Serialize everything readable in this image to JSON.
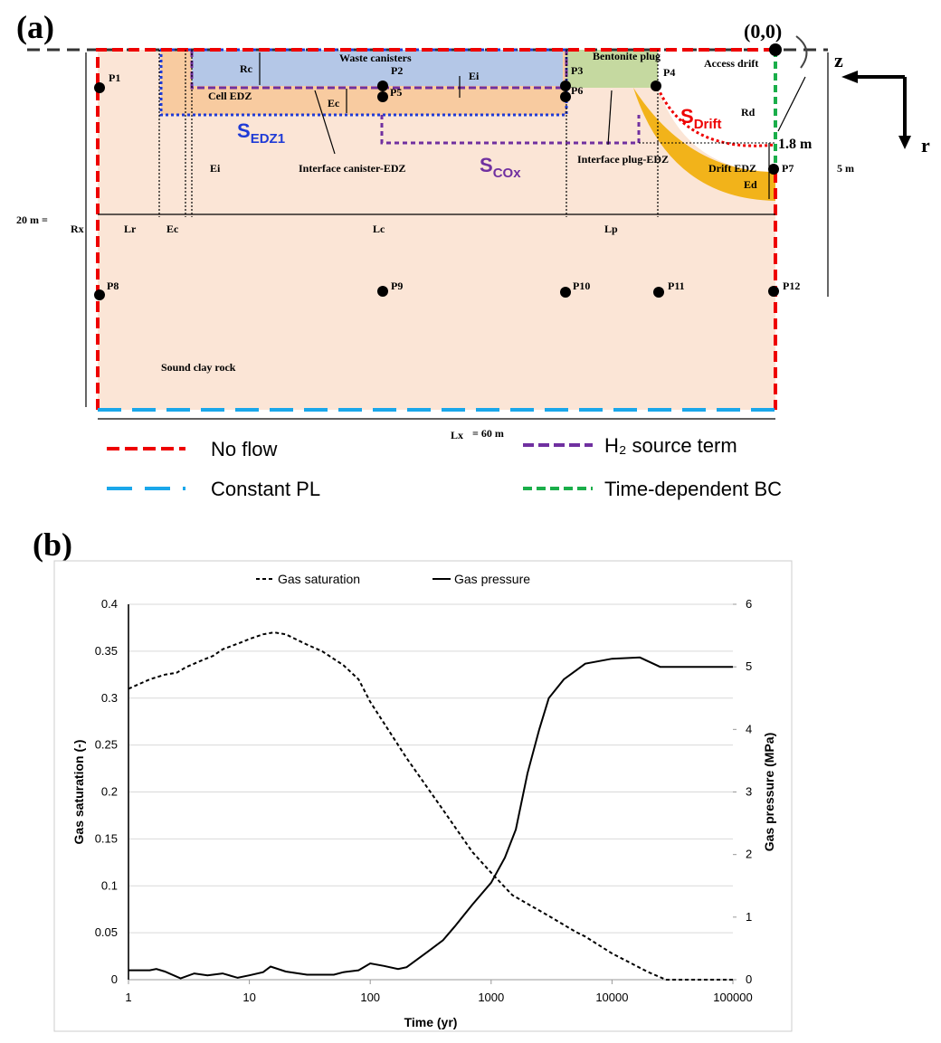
{
  "diagram": {
    "panel_label": "(a)",
    "origin": "(0,0)",
    "axis_z": "z",
    "axis_r": "r",
    "waste_canisters": "Waste canisters",
    "rc": "Rc",
    "ei_top": "Ei",
    "bentonite": "Bentonite plug",
    "access_drift": "Access drift",
    "cell_edz": "Cell EDZ",
    "ec_top": "Ec",
    "rd": "Rd",
    "s_edz1": {
      "main": "S",
      "sub": "EDZ1"
    },
    "s_drift": {
      "main": "S",
      "sub": "Drift"
    },
    "s_cox": {
      "main": "S",
      "sub": "COx"
    },
    "dist_18": "1.8 m",
    "interface_canister": "Interface canister-EDZ",
    "interface_plug": "Interface plug-EDZ",
    "ei_left": "Ei",
    "drift_edz": "Drift EDZ",
    "ed": "Ed",
    "dist_5": "5 m",
    "dist_20": "20 m =",
    "rx": "Rx",
    "lr": "Lr",
    "ec": "Ec",
    "lc": "Lc",
    "lp": "Lp",
    "sound_clay": "Sound clay rock",
    "lx": "Lx",
    "dist_60": "= 60 m",
    "points": [
      "P1",
      "P2",
      "P3",
      "P4",
      "P5",
      "P6",
      "P7",
      "P8",
      "P9",
      "P10",
      "P11",
      "P12"
    ],
    "legend": [
      "No flow",
      "Constant PL",
      "H₂ source term",
      "Time-dependent BC"
    ]
  },
  "panel_b": "(b)",
  "chart_data": {
    "type": "line",
    "xlabel": "Time (yr)",
    "ylabel": "Gas saturation (-)",
    "y2label": "Gas pressure (MPa)",
    "xscale": "log",
    "xlim": [
      1,
      100000
    ],
    "xticks": [
      1,
      10,
      100,
      1000,
      10000,
      100000
    ],
    "ylim": [
      0,
      0.4
    ],
    "yticks": [
      0,
      0.05,
      0.1,
      0.15,
      0.2,
      0.25,
      0.3,
      0.35,
      0.4
    ],
    "y2lim": [
      0,
      6
    ],
    "y2ticks": [
      0,
      1,
      2,
      3,
      4,
      5,
      6
    ],
    "grid": true,
    "legend": "top",
    "series": [
      {
        "name": "Gas saturation",
        "color": "#000000",
        "dash": "dashed",
        "x": [
          1,
          1.5,
          2,
          2.5,
          3,
          4,
          5,
          6,
          8,
          10,
          13,
          16,
          20,
          30,
          40,
          60,
          80,
          100,
          200,
          400,
          700,
          1000,
          1500,
          3000,
          5000,
          6000,
          10000,
          20000,
          28000,
          100000
        ],
        "values": [
          0.31,
          0.32,
          0.325,
          0.327,
          0.333,
          0.34,
          0.345,
          0.352,
          0.358,
          0.363,
          0.368,
          0.37,
          0.368,
          0.357,
          0.35,
          0.335,
          0.32,
          0.296,
          0.236,
          0.181,
          0.136,
          0.114,
          0.09,
          0.068,
          0.051,
          0.046,
          0.028,
          0.008,
          0,
          0
        ]
      },
      {
        "name": "Gas pressure",
        "color": "#000000",
        "dash": "solid",
        "axis": "y2",
        "x": [
          1,
          1.5,
          1.7,
          2,
          2.7,
          3.5,
          4.5,
          6,
          8,
          10,
          13,
          15,
          20,
          30,
          50,
          60,
          80,
          100,
          130,
          170,
          200,
          300,
          400,
          500,
          700,
          1000,
          1300,
          1600,
          2000,
          2500,
          3000,
          4000,
          6000,
          10000,
          17000,
          25000,
          100000
        ],
        "values": [
          0.15,
          0.15,
          0.17,
          0.13,
          0.02,
          0.1,
          0.07,
          0.1,
          0.03,
          0.07,
          0.12,
          0.21,
          0.13,
          0.08,
          0.08,
          0.12,
          0.15,
          0.26,
          0.22,
          0.17,
          0.2,
          0.45,
          0.63,
          0.85,
          1.2,
          1.55,
          1.95,
          2.4,
          3.3,
          4.0,
          4.5,
          4.8,
          5.05,
          5.13,
          5.15,
          5.0,
          5.0
        ]
      }
    ]
  }
}
